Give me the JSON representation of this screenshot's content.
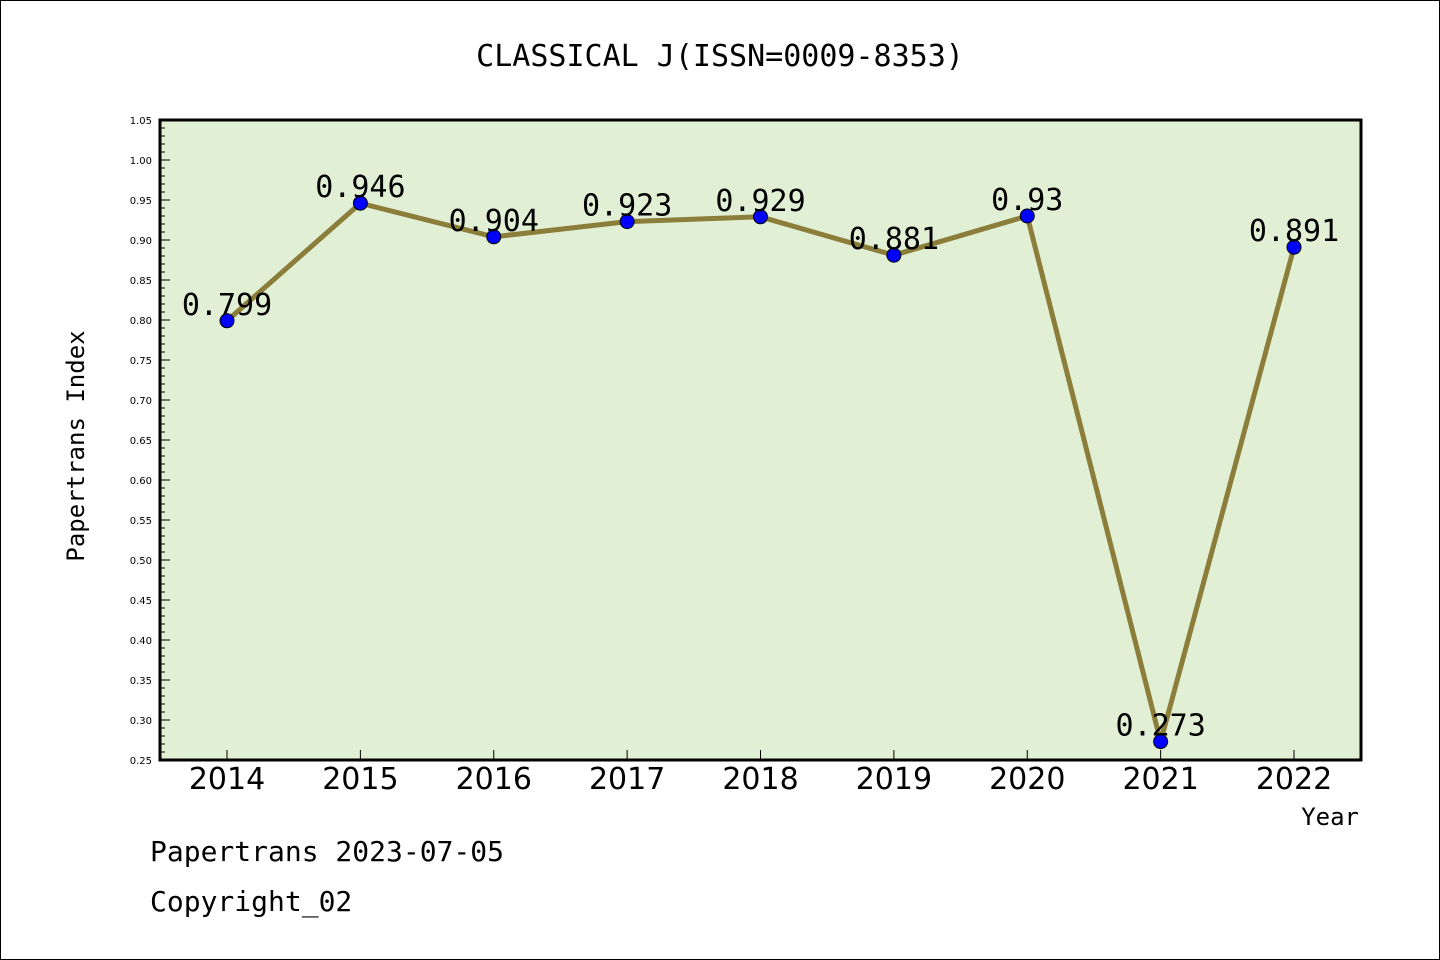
{
  "chart_data": {
    "type": "line",
    "title": "CLASSICAL J(ISSN=0009-8353)",
    "xlabel": "Year",
    "ylabel": "Papertrans Index",
    "categories": [
      "2014",
      "2015",
      "2016",
      "2017",
      "2018",
      "2019",
      "2020",
      "2021",
      "2022"
    ],
    "series": [
      {
        "values": [
          0.799,
          0.946,
          0.904,
          0.923,
          0.929,
          0.881,
          0.93,
          0.273,
          0.891
        ],
        "data_labels": [
          "0.799",
          "0.946",
          "0.904",
          "0.923",
          "0.929",
          "0.881",
          "0.93",
          "0.273",
          "0.891"
        ]
      }
    ],
    "ylim": [
      0.25,
      1.05
    ],
    "yticks": [
      "0.25",
      "0.30",
      "0.35",
      "0.40",
      "0.45",
      "0.50",
      "0.55",
      "0.60",
      "0.65",
      "0.70",
      "0.75",
      "0.80",
      "0.85",
      "0.90",
      "0.95",
      "1.00",
      "1.05"
    ],
    "grid": false,
    "colors": {
      "plot_background": "#e1efd4",
      "line": "#8b7d3a",
      "marker": "#0000ff"
    }
  },
  "footer": {
    "date_line": "Papertrans 2023-07-05",
    "copyright": "Copyright_02"
  }
}
